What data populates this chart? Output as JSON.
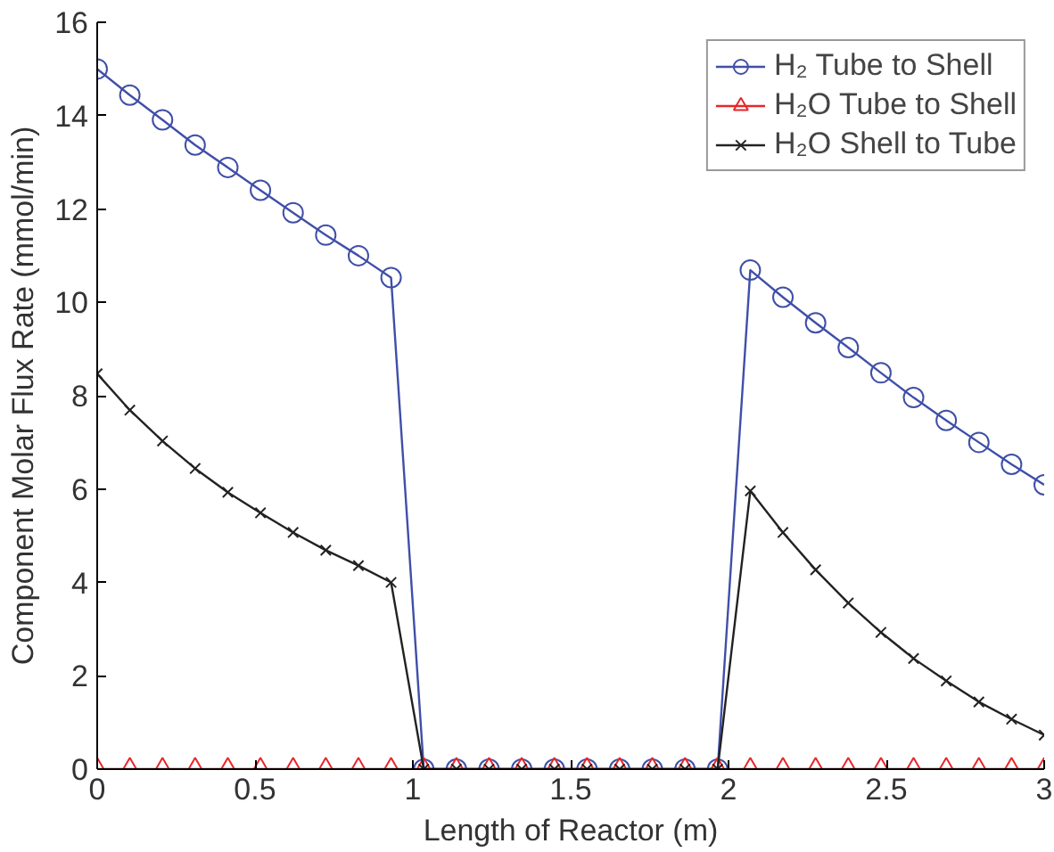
{
  "chart_data": {
    "type": "line",
    "xlabel": "Length of Reactor (m)",
    "ylabel": "Component Molar Flux Rate (mmol/min)",
    "x": [
      0,
      0.1034,
      0.2069,
      0.3103,
      0.4138,
      0.5172,
      0.6207,
      0.7241,
      0.8276,
      0.931,
      1.0345,
      1.1379,
      1.2414,
      1.3448,
      1.4483,
      1.5517,
      1.6552,
      1.7586,
      1.8621,
      1.9655,
      2.069,
      2.1724,
      2.2759,
      2.3793,
      2.4828,
      2.5862,
      2.6897,
      2.7931,
      2.8966,
      3
    ],
    "series": [
      {
        "name": "H₂ Tube to Shell",
        "color": "#3f4fa8",
        "marker": "circle",
        "values": [
          15.0,
          14.44,
          13.91,
          13.37,
          12.89,
          12.4,
          11.92,
          11.44,
          11.0,
          10.53,
          0,
          0,
          0,
          0,
          0,
          0,
          0,
          0,
          0,
          0,
          10.69,
          10.11,
          9.56,
          9.03,
          8.49,
          7.96,
          7.47,
          7.0,
          6.53,
          6.09
        ]
      },
      {
        "name": "H₂O Tube to Shell",
        "color": "#e8262a",
        "marker": "triangle",
        "values": [
          0,
          0,
          0,
          0,
          0,
          0,
          0,
          0,
          0,
          0,
          0,
          0,
          0,
          0,
          0,
          0,
          0,
          0,
          0,
          0,
          0,
          0,
          0,
          0,
          0,
          0,
          0,
          0,
          0,
          0
        ]
      },
      {
        "name": "H₂O Shell to Tube",
        "color": "#222222",
        "marker": "cross",
        "values": [
          8.47,
          7.69,
          7.03,
          6.44,
          5.93,
          5.49,
          5.07,
          4.69,
          4.36,
          4.0,
          0,
          0,
          0,
          0,
          0,
          0,
          0,
          0,
          0,
          0,
          5.96,
          5.07,
          4.27,
          3.56,
          2.93,
          2.37,
          1.89,
          1.44,
          1.07,
          0.73
        ]
      }
    ],
    "xlim": [
      0,
      3
    ],
    "ylim": [
      0,
      16
    ],
    "xticks": [
      0,
      0.5,
      1,
      1.5,
      2,
      2.5,
      3
    ],
    "yticks": [
      0,
      2,
      4,
      6,
      8,
      10,
      12,
      14,
      16
    ],
    "grid": false,
    "legend": "top right",
    "line_style": "solid"
  }
}
